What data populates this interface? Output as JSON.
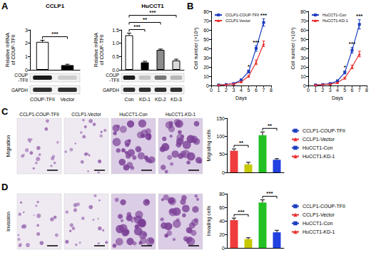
{
  "panel_labels": [
    "A",
    "B",
    "C",
    "D"
  ],
  "chart_data": [
    {
      "type": "bar",
      "title": "CCLP1",
      "ylabel": "Relative mRNA\nof COUP-TFII",
      "categories": [
        "COUP-TFII",
        "Vector"
      ],
      "values": [
        2.1,
        0.35
      ],
      "errors": [
        0.12,
        0.07
      ],
      "colors": [
        "#ffffff",
        "#000000"
      ],
      "ylim": [
        0,
        3
      ],
      "yticks": [
        0,
        1,
        2,
        3
      ],
      "grid": false,
      "annotations": [
        {
          "text": "***",
          "from": "COUP-TFII",
          "to": "Vector"
        }
      ]
    },
    {
      "type": "bar",
      "title": "HuCCT1",
      "ylabel": "Relative mRNA\nof COUP-TFII",
      "categories": [
        "Con",
        "KD-1",
        "KD-2",
        "KD-3"
      ],
      "values": [
        1.3,
        0.28,
        0.75,
        0.35
      ],
      "errors": [
        0.08,
        0.04,
        0.03,
        0.05
      ],
      "colors": [
        "#ffffff",
        "#000000",
        "#8c8c8c",
        "#d9d9d9"
      ],
      "ylim": [
        0,
        1.5
      ],
      "yticks": [
        {
          "value": 0,
          "label": "0.0"
        },
        {
          "value": 0.5,
          "label": "0.5"
        },
        {
          "value": 1,
          "label": "1.0"
        },
        {
          "value": 1.5,
          "label": "1.5"
        }
      ],
      "grid": false,
      "annotations": [
        {
          "text": "***",
          "from": "Con",
          "to": "KD-1"
        },
        {
          "text": "**",
          "from": "Con",
          "to": "KD-2"
        },
        {
          "text": "***",
          "from": "Con",
          "to": "KD-3"
        }
      ]
    },
    {
      "type": "line",
      "xlabel": "Days",
      "ylabel": "Cell number (×10⁴)",
      "x": [
        1,
        2,
        3,
        4,
        5,
        6,
        7
      ],
      "series": [
        {
          "name": "CCLP1-COUP-TFII",
          "color": "#1f3fbf",
          "marker": "rect",
          "values": [
            0.5,
            1,
            2,
            6,
            15,
            40,
            68
          ],
          "errors": [
            0.1,
            0.2,
            0.3,
            0.6,
            1.5,
            3,
            4
          ]
        },
        {
          "name": "CCLP1-Vector",
          "color": "#e8312f",
          "marker": "triangle",
          "values": [
            0.5,
            1,
            1.8,
            4,
            10,
            25,
            45
          ],
          "errors": [
            0.1,
            0.2,
            0.3,
            0.5,
            1,
            2.5,
            3
          ]
        }
      ],
      "xlim": [
        0,
        8
      ],
      "xticks": [
        0,
        1,
        2,
        3,
        4,
        5,
        6,
        7,
        8
      ],
      "ylim": [
        0,
        80
      ],
      "yticks": [
        0,
        10,
        20,
        30,
        40,
        50,
        60,
        70,
        80
      ],
      "grid": false,
      "legend": "upper left",
      "annotations": [
        {
          "text": "*",
          "x": 5
        },
        {
          "text": "***",
          "x": 6
        },
        {
          "text": "***",
          "x": 7
        }
      ]
    },
    {
      "type": "line",
      "xlabel": "Days",
      "ylabel": "Cell number (×10⁴)",
      "x": [
        1,
        2,
        3,
        4,
        5,
        6,
        7
      ],
      "series": [
        {
          "name": "HuCCT1-Con",
          "color": "#1f3fbf",
          "marker": "rect",
          "values": [
            0.5,
            1,
            2,
            5,
            14,
            38,
            66
          ],
          "errors": [
            0.1,
            0.2,
            0.3,
            0.5,
            1.5,
            3,
            5
          ]
        },
        {
          "name": "HuCCT1-KD-1",
          "color": "#e8312f",
          "marker": "triangle",
          "values": [
            0.5,
            1,
            1.5,
            3,
            8,
            20,
            34
          ],
          "errors": [
            0.1,
            0.2,
            0.2,
            0.4,
            1,
            2,
            3
          ]
        }
      ],
      "xlim": [
        0,
        8
      ],
      "xticks": [
        0,
        1,
        2,
        3,
        4,
        5,
        6,
        7,
        8
      ],
      "ylim": [
        0,
        80
      ],
      "yticks": [
        0,
        10,
        20,
        30,
        40,
        50,
        60,
        70,
        80
      ],
      "grid": false,
      "legend": "upper left",
      "annotations": [
        {
          "text": "*",
          "x": 5
        },
        {
          "text": "***",
          "x": 6
        },
        {
          "text": "***",
          "x": 7
        }
      ]
    },
    {
      "type": "bar",
      "ylabel": "Migrating cells",
      "categories": [
        "CCLP1-COUP-TFII",
        "CCLP1-Vector",
        "HuCCT1-Con",
        "HuCCT1-KD-1"
      ],
      "values": [
        60,
        22,
        103,
        35
      ],
      "errors": [
        5,
        6,
        9,
        3
      ],
      "colors": [
        "#f03c3c",
        "#c8c800",
        "#22c022",
        "#2040e0"
      ],
      "ylim": [
        0,
        150
      ],
      "yticks": [
        0,
        50,
        100,
        150
      ],
      "grid": false,
      "legend": "right",
      "tick_labels": "y",
      "annotations": [
        {
          "text": "**",
          "from": "CCLP1-COUP-TFII",
          "to": "CCLP1-Vector"
        },
        {
          "text": "**",
          "from": "HuCCT1-Con",
          "to": "HuCCT1-KD-1"
        }
      ]
    },
    {
      "type": "bar",
      "ylabel": "Invading cells",
      "categories": [
        "CCLP1-COUP-TFII",
        "CCLP1-Vector",
        "HuCCT1-Con",
        "HuCCT1-KD-1"
      ],
      "values": [
        41,
        13,
        67,
        23
      ],
      "errors": [
        3,
        2,
        4,
        3
      ],
      "colors": [
        "#f03c3c",
        "#c8c800",
        "#22c022",
        "#2040e0"
      ],
      "ylim": [
        0,
        80
      ],
      "yticks": [
        0,
        20,
        40,
        60,
        80
      ],
      "grid": false,
      "legend": "right",
      "tick_labels": "y",
      "annotations": [
        {
          "text": "***",
          "from": "CCLP1-COUP-TFII",
          "to": "CCLP1-Vector"
        },
        {
          "text": "***",
          "from": "HuCCT1-Con",
          "to": "HuCCT1-KD-1"
        }
      ]
    }
  ],
  "blots": [
    [
      "COUP\n-TFII",
      "GAPDH"
    ],
    [
      "COUP\n-TFII",
      "GAPDH"
    ]
  ],
  "micrographs": {
    "captions": [
      "CCLP1-COUP-TFII",
      "CCLP1-Vector",
      "HuCCT1-Con",
      "HuCCT1-KD-1"
    ],
    "rows": [
      "Migration",
      "Invasion"
    ]
  }
}
